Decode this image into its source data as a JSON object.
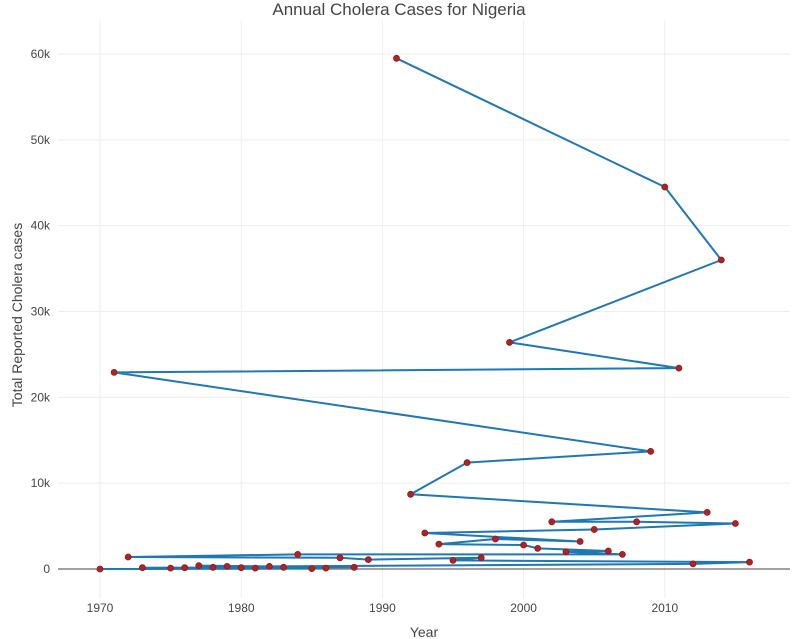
{
  "chart_data": {
    "type": "line",
    "title": "Annual Cholera Cases for Nigeria",
    "xlabel": "Year",
    "ylabel": "Total Reported Cholera cases",
    "xlim": [
      1965.5,
      1917.5
    ],
    "ylim": [
      -4500,
      63000
    ],
    "x_ticks": [
      1970,
      1980,
      1990,
      2000,
      2010
    ],
    "y_ticks": [
      0,
      10000,
      20000,
      30000,
      40000,
      50000,
      60000
    ],
    "y_tick_labels": [
      "0",
      "10k",
      "20k",
      "30k",
      "40k",
      "50k",
      "60k"
    ],
    "grid": true,
    "legend": "none",
    "colors": {
      "line": "#1f77b4",
      "marker": "#b22222",
      "marker_edge": "#8b1a1a"
    },
    "series": [
      {
        "x": [
          1991,
          2010,
          2014,
          1999,
          2011,
          1971,
          2009,
          1996,
          1992,
          2013,
          2002,
          2008,
          2015,
          2005,
          1993,
          2004,
          1998,
          1994,
          2000,
          2001,
          2006,
          2003,
          2007,
          1984,
          1972,
          1987,
          1989,
          1997,
          1995,
          2016,
          2012,
          1982,
          1977,
          1979,
          1988,
          1978,
          1980,
          1976,
          1973,
          1983,
          1981,
          1986,
          1975,
          1985,
          1970
        ],
        "y": [
          59500,
          44500,
          36000,
          26400,
          23400,
          22900,
          13700,
          12400,
          8700,
          6600,
          5500,
          5500,
          5300,
          4600,
          4200,
          3200,
          3500,
          2900,
          2800,
          2400,
          2100,
          2000,
          1700,
          1700,
          1400,
          1300,
          1100,
          1300,
          1000,
          800,
          600,
          300,
          400,
          300,
          200,
          200,
          150,
          150,
          150,
          200,
          100,
          100,
          100,
          50,
          0
        ]
      }
    ]
  }
}
